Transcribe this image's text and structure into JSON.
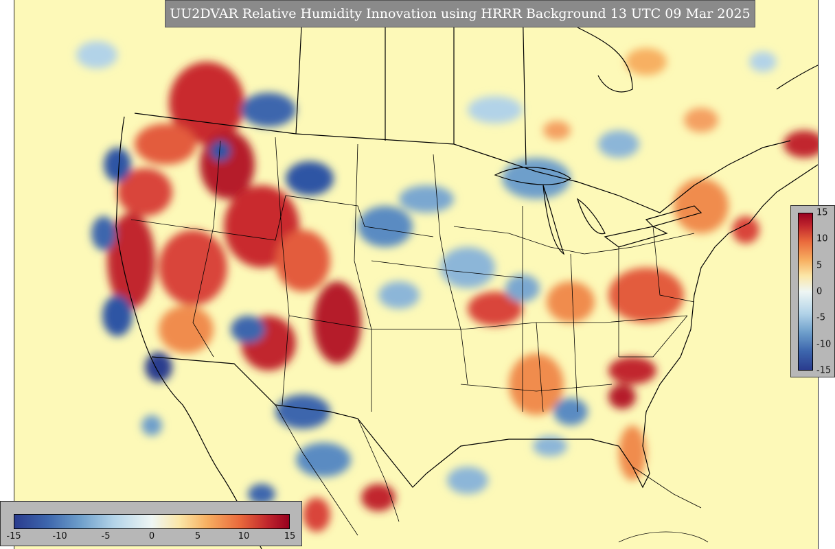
{
  "title": "UU2DVAR Relative Humidity Innovation using HRRR Background 13 UTC 09 Mar 2025",
  "colorbar": {
    "horizontal_ticks": [
      "-15",
      "-10",
      "-5",
      "0",
      "5",
      "10",
      "15"
    ],
    "vertical_ticks": [
      "15",
      "10",
      "5",
      "0",
      "-5",
      "-10",
      "-15"
    ],
    "range": [
      -15,
      15
    ],
    "colors": {
      "min": "#2a3c8e",
      "neutral": "#fdf9b8",
      "max": "#98001f"
    }
  },
  "map": {
    "background_color": "#fdf9b8",
    "boundary_color": "#000000"
  }
}
